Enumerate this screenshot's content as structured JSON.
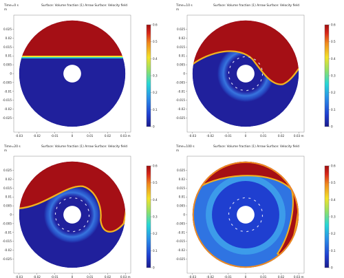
{
  "chart_data": [
    {
      "type": "heatmap",
      "time_label": "Time=0 s",
      "title": "Surface: Volume fraction (1)  Arrow Surface: Velocity field",
      "unit_label": "m",
      "x_ticks": [
        "-0.03",
        "-0.02",
        "-0.01",
        "0",
        "0.01",
        "0.02",
        "0.03 m"
      ],
      "y_ticks": [
        "0.025",
        "0.02",
        "0.015",
        "0.01",
        "0.005",
        "0",
        "-0.005",
        "-0.01",
        "-0.015",
        "-0.02",
        "-0.025"
      ],
      "colorbar": {
        "min": 0,
        "max": 0.6,
        "ticks": [
          "0.6",
          "0.5",
          "0.4",
          "0.3",
          "0.2",
          "0.1",
          "0"
        ]
      }
    },
    {
      "type": "heatmap",
      "time_label": "Time=10 s",
      "title": "Surface: Volume fraction (1)  Arrow Surface: Velocity field",
      "unit_label": "m",
      "x_ticks": [
        "-0.03",
        "-0.02",
        "-0.01",
        "0",
        "0.01",
        "0.02",
        "0.03 m"
      ],
      "y_ticks": [
        "0.025",
        "0.02",
        "0.015",
        "0.01",
        "0.005",
        "0",
        "-0.005",
        "-0.01",
        "-0.015",
        "-0.02",
        "-0.025"
      ],
      "colorbar": {
        "min": 0,
        "max": 0.6,
        "ticks": [
          "0.6",
          "0.5",
          "0.4",
          "0.3",
          "0.2",
          "0.1",
          "0"
        ]
      }
    },
    {
      "type": "heatmap",
      "time_label": "Time=20 s",
      "title": "Surface: Volume fraction (1)  Arrow Surface: Velocity field",
      "unit_label": "m",
      "x_ticks": [
        "-0.03",
        "-0.02",
        "-0.01",
        "0",
        "0.01",
        "0.02",
        "0.03 m"
      ],
      "y_ticks": [
        "0.025",
        "0.02",
        "0.015",
        "0.01",
        "0.005",
        "0",
        "-0.005",
        "-0.01",
        "-0.015",
        "-0.02",
        "-0.025"
      ],
      "colorbar": {
        "min": 0,
        "max": 0.6,
        "ticks": [
          "0.6",
          "0.5",
          "0.4",
          "0.3",
          "0.2",
          "0.1",
          "0"
        ]
      }
    },
    {
      "type": "heatmap",
      "time_label": "Time=100 s",
      "title": "Surface: Volume fraction (1)  Arrow Surface: Velocity field",
      "unit_label": "m",
      "x_ticks": [
        "-0.03",
        "-0.02",
        "-0.01",
        "0",
        "0.01",
        "0.02",
        "0.03 m"
      ],
      "y_ticks": [
        "0.025",
        "0.02",
        "0.015",
        "0.01",
        "0.005",
        "0",
        "-0.005",
        "-0.01",
        "-0.015",
        "-0.02",
        "-0.025"
      ],
      "colorbar": {
        "min": 0,
        "max": 0.6,
        "ticks": [
          "0.6",
          "0.5",
          "0.4",
          "0.3",
          "0.2",
          "0.1",
          "0"
        ]
      }
    }
  ],
  "colors": {
    "high": "#a50f15",
    "low": "#20209c",
    "text": "#222222"
  }
}
